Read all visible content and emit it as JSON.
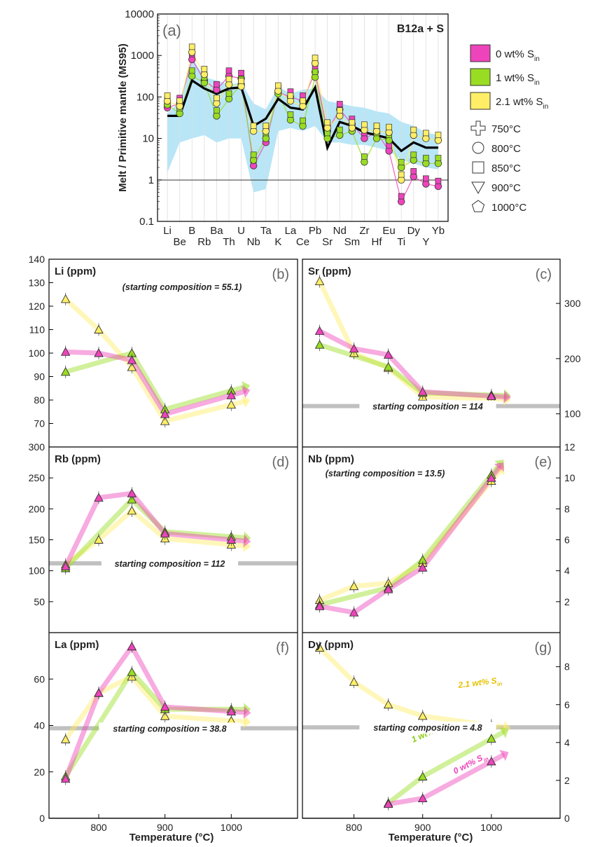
{
  "chart_data": [
    {
      "panel": "a",
      "type": "line",
      "panel_label": "(a)",
      "title": "B12a + S",
      "ylabel": "Melt / Primitive mantle (MS95)",
      "yscale": "log",
      "ylim": [
        0.1,
        10000
      ],
      "yticks": [
        "0.1",
        "1",
        "10",
        "100",
        "1000",
        "10000"
      ],
      "categories": [
        "Li",
        "Be",
        "B",
        "Rb",
        "Ba",
        "Th",
        "U",
        "Nb",
        "Ta",
        "K",
        "La",
        "Ce",
        "Pb",
        "Sr",
        "Nd",
        "Sm",
        "Zr",
        "Hf",
        "Eu",
        "Ti",
        "Dy",
        "Y",
        "Yb"
      ],
      "reference_line": 1,
      "band": {
        "low": [
          1.5,
          8,
          10,
          12,
          8,
          10,
          10,
          0.5,
          0.6,
          15,
          18,
          15,
          20,
          8,
          8,
          7,
          7,
          6,
          5,
          3,
          2.5,
          2.0,
          1.8
        ],
        "high": [
          40,
          80,
          900,
          300,
          250,
          200,
          220,
          70,
          50,
          180,
          120,
          150,
          160,
          80,
          70,
          60,
          55,
          45,
          40,
          25,
          20,
          14,
          12
        ]
      },
      "starting_composition": [
        35,
        35,
        250,
        160,
        120,
        160,
        170,
        20,
        30,
        90,
        55,
        50,
        170,
        6,
        25,
        20,
        14,
        12,
        10,
        5,
        8,
        6,
        6
      ],
      "series": [
        {
          "name": "0 wt% S",
          "subscript": "in",
          "color": "#ee44bb",
          "values": [
            55,
            70,
            800,
            250,
            150,
            320,
            280,
            2.2,
            8,
            130,
            100,
            80,
            400,
            15,
            50,
            22,
            10,
            14,
            5,
            0.3,
            1.2,
            0.8,
            0.7
          ]
        },
        {
          "name": "1 wt% S",
          "subscript": "in",
          "color": "#99dd22",
          "values": [
            65,
            40,
            320,
            220,
            35,
            90,
            200,
            3,
            10,
            120,
            28,
            20,
            300,
            10,
            12,
            15,
            2.7,
            10,
            9,
            2,
            3,
            2.5,
            2.5
          ]
        },
        {
          "name": "2.1 wt% S",
          "subscript": "in",
          "color": "#ffee66",
          "values": [
            80,
            60,
            1200,
            350,
            70,
            200,
            180,
            15,
            15,
            140,
            80,
            60,
            650,
            18,
            35,
            18,
            16,
            15,
            14,
            1,
            12,
            10,
            9
          ]
        }
      ],
      "temperature_legend": [
        "750°C",
        "800°C",
        "850°C",
        "900°C",
        "1000°C"
      ]
    },
    {
      "panel": "b",
      "type": "line",
      "panel_label": "(b)",
      "title": "Li (ppm)",
      "ylim": [
        60,
        140
      ],
      "yticks": [
        70,
        80,
        90,
        100,
        110,
        120,
        130,
        140
      ],
      "yaxis_side": "left",
      "xlim": [
        725,
        1100
      ],
      "annotation": "(starting composition = 55.1)",
      "series": [
        {
          "name": "0 wt% S",
          "color": "#ee44bb",
          "x": [
            750,
            800,
            850,
            900,
            1000
          ],
          "y": [
            100.5,
            100,
            97,
            74,
            82
          ]
        },
        {
          "name": "1 wt% S",
          "color": "#99dd22",
          "x": [
            750,
            800,
            850,
            900,
            1000
          ],
          "y": [
            92,
            null,
            100,
            76,
            84
          ]
        },
        {
          "name": "2.1 wt% S",
          "color": "#ffee66",
          "x": [
            750,
            800,
            850,
            900,
            1000
          ],
          "y": [
            123,
            110,
            94,
            71,
            78
          ]
        }
      ]
    },
    {
      "panel": "c",
      "type": "line",
      "panel_label": "(c)",
      "title": "Sr (ppm)",
      "ylim": [
        40,
        380
      ],
      "yticks": [
        100,
        200,
        300
      ],
      "yaxis_side": "right",
      "xlim": [
        725,
        1100
      ],
      "reference_value": 114,
      "annotation": "starting composition = 114",
      "series": [
        {
          "name": "0 wt% S",
          "color": "#ee44bb",
          "x": [
            750,
            800,
            850,
            900,
            1000
          ],
          "y": [
            250,
            218,
            207,
            140,
            132
          ]
        },
        {
          "name": "1 wt% S",
          "color": "#99dd22",
          "x": [
            750,
            800,
            850,
            900,
            1000
          ],
          "y": [
            225,
            null,
            185,
            138,
            134
          ]
        },
        {
          "name": "2.1 wt% S",
          "color": "#ffee66",
          "x": [
            750,
            800,
            850,
            900,
            1000
          ],
          "y": [
            340,
            210,
            183,
            131,
            127
          ]
        }
      ]
    },
    {
      "panel": "d",
      "type": "line",
      "panel_label": "(d)",
      "title": "Rb (ppm)",
      "ylim": [
        0,
        300
      ],
      "yticks": [
        50,
        100,
        150,
        200,
        250,
        300
      ],
      "yaxis_side": "left",
      "xlim": [
        725,
        1100
      ],
      "reference_value": 112,
      "annotation": "starting composition = 112",
      "series": [
        {
          "name": "0 wt% S",
          "color": "#ee44bb",
          "x": [
            750,
            800,
            850,
            900,
            1000
          ],
          "y": [
            107,
            218,
            225,
            160,
            150
          ]
        },
        {
          "name": "1 wt% S",
          "color": "#99dd22",
          "x": [
            750,
            800,
            850,
            900,
            1000
          ],
          "y": [
            104,
            null,
            215,
            163,
            155
          ]
        },
        {
          "name": "2.1 wt% S",
          "color": "#ffee66",
          "x": [
            750,
            800,
            850,
            900,
            1000
          ],
          "y": [
            110,
            150,
            197,
            152,
            142
          ]
        }
      ]
    },
    {
      "panel": "e",
      "type": "line",
      "panel_label": "(e)",
      "title": "Nb (ppm)",
      "ylim": [
        0,
        12
      ],
      "yticks": [
        2,
        4,
        6,
        8,
        10,
        12
      ],
      "yaxis_side": "right",
      "xlim": [
        725,
        1100
      ],
      "annotation": "(starting composition = 13.5)",
      "series": [
        {
          "name": "0 wt% S",
          "color": "#ee44bb",
          "x": [
            750,
            800,
            850,
            900,
            1000
          ],
          "y": [
            1.7,
            1.3,
            2.8,
            4.2,
            10.0
          ]
        },
        {
          "name": "1 wt% S",
          "color": "#99dd22",
          "x": [
            750,
            800,
            850,
            900,
            1000
          ],
          "y": [
            1.8,
            null,
            2.9,
            4.7,
            10.2
          ]
        },
        {
          "name": "2.1 wt% S",
          "color": "#ffee66",
          "x": [
            750,
            800,
            850,
            900,
            1000
          ],
          "y": [
            2.1,
            3.0,
            3.2,
            4.5,
            9.8
          ]
        }
      ]
    },
    {
      "panel": "f",
      "type": "line",
      "panel_label": "(f)",
      "title": "La (ppm)",
      "ylim": [
        0,
        80
      ],
      "yticks": [
        0,
        20,
        40,
        60
      ],
      "yaxis_side": "left",
      "xlim": [
        725,
        1100
      ],
      "xticks": [
        800,
        900,
        1000
      ],
      "xlabel": "Temperature (°C)",
      "reference_value": 38.8,
      "annotation": "starting composition = 38.8",
      "series": [
        {
          "name": "0 wt% S",
          "color": "#ee44bb",
          "x": [
            750,
            800,
            850,
            900,
            1000
          ],
          "y": [
            17,
            54,
            74,
            48,
            46
          ]
        },
        {
          "name": "1 wt% S",
          "color": "#99dd22",
          "x": [
            750,
            800,
            850,
            900,
            1000
          ],
          "y": [
            18,
            null,
            63,
            47,
            47
          ]
        },
        {
          "name": "2.1 wt% S",
          "color": "#ffee66",
          "x": [
            750,
            800,
            850,
            900,
            1000
          ],
          "y": [
            34,
            54,
            61,
            44,
            42
          ]
        }
      ]
    },
    {
      "panel": "g",
      "type": "line",
      "panel_label": "(g)",
      "title": "Dy (ppm)",
      "ylim": [
        0,
        9.8
      ],
      "yticks": [
        0,
        2,
        4,
        6,
        8
      ],
      "yaxis_side": "right",
      "xlim": [
        725,
        1100
      ],
      "xticks": [
        800,
        900,
        1000
      ],
      "xlabel": "Temperature (°C)",
      "reference_value": 4.8,
      "annotation": "starting composition = 4.8",
      "series": [
        {
          "name": "0 wt% S",
          "label": "0 wt% S",
          "subscript": "in",
          "color": "#ee44bb",
          "x": [
            850,
            900,
            1000
          ],
          "y": [
            0.75,
            1.05,
            3.0
          ]
        },
        {
          "name": "1 wt% S",
          "label": "1 wt% S",
          "subscript": "in",
          "color": "#99dd22",
          "x": [
            850,
            900,
            1000
          ],
          "y": [
            0.8,
            2.2,
            4.2
          ]
        },
        {
          "name": "2.1 wt% S",
          "label": "2.1 wt% S",
          "subscript": "in",
          "color": "#ffee66",
          "x": [
            750,
            800,
            850,
            900,
            1000
          ],
          "y": [
            9.0,
            7.2,
            6.0,
            5.4,
            4.9
          ]
        }
      ]
    }
  ],
  "colors": {
    "magenta": "#ee44bb",
    "green": "#99dd22",
    "yellow": "#ffee66",
    "band": "#b8e6f7",
    "ref": "#c0c0c0"
  }
}
